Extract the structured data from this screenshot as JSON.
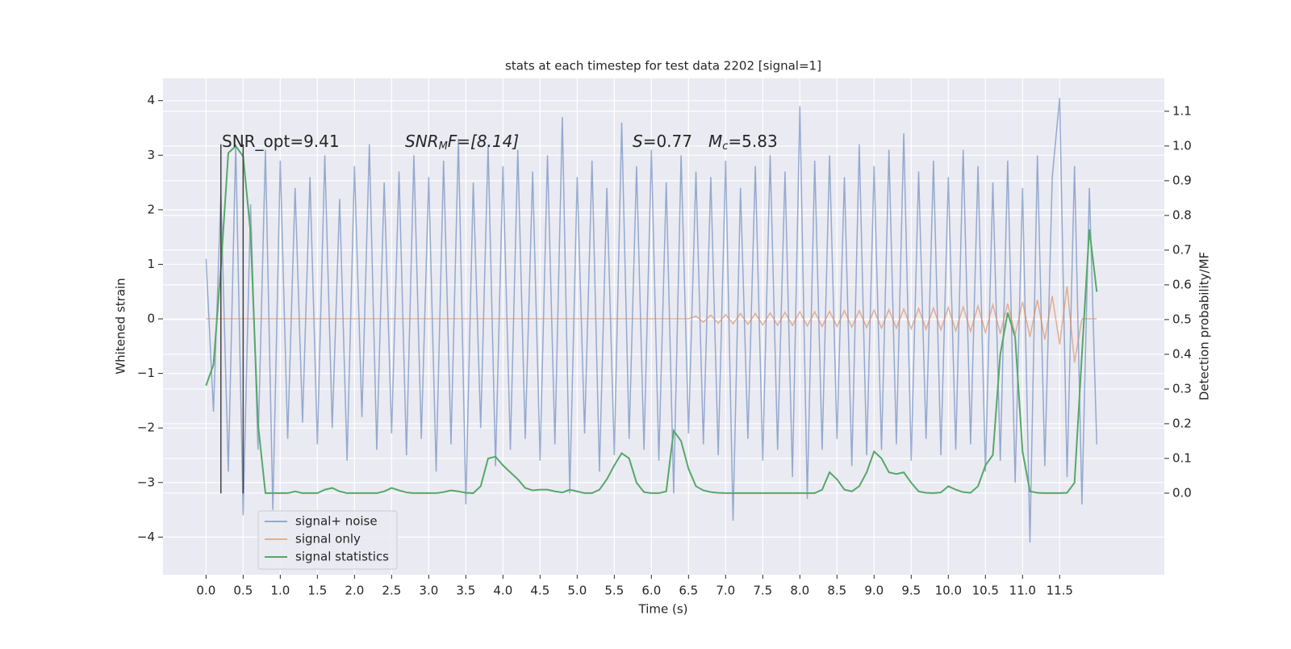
{
  "chart_data": {
    "type": "line",
    "title": "stats at each timestep for test data 2202 [signal=1]",
    "xlabel": "Time (s)",
    "ylabel": "Whitened strain",
    "y2label": "Detection probability/MF",
    "xlim": [
      -0.58,
      12.91
    ],
    "ylim": [
      -4.69,
      4.41
    ],
    "y2lim": [
      -0.235,
      1.195
    ],
    "xticks": [
      {
        "value": 0,
        "label": "0.0"
      },
      0.5,
      {
        "value": 1,
        "label": "1.0"
      },
      1.5,
      {
        "value": 2,
        "label": "2.0"
      },
      2.5,
      {
        "value": 3,
        "label": "3.0"
      },
      3.5,
      {
        "value": 4,
        "label": "4.0"
      },
      4.5,
      {
        "value": 5,
        "label": "5.0"
      },
      5.5,
      {
        "value": 6,
        "label": "6.0"
      },
      6.5,
      {
        "value": 7,
        "label": "7.0"
      },
      7.5,
      {
        "value": 8,
        "label": "8.0"
      },
      8.5,
      {
        "value": 9,
        "label": "9.0"
      },
      9.5,
      {
        "value": 10,
        "label": "10.0"
      },
      10.5,
      {
        "value": 11,
        "label": "11.0"
      },
      11.5
    ],
    "yticks": [
      {
        "value": -4,
        "label": "−4"
      },
      {
        "value": -3,
        "label": "−3"
      },
      {
        "value": -2,
        "label": "−2"
      },
      {
        "value": -1,
        "label": "−1"
      },
      0,
      1,
      2,
      3,
      4
    ],
    "y2ticks": [
      {
        "value": 0,
        "label": "0.0"
      },
      0.1,
      0.2,
      0.3,
      0.4,
      0.5,
      0.6,
      0.7,
      0.8,
      0.9,
      {
        "value": 1,
        "label": "1.0"
      },
      1.1
    ],
    "grid": true,
    "legend": "lower left",
    "x": [
      0,
      0.1,
      0.2,
      0.3,
      0.4,
      0.5,
      0.6,
      0.7,
      0.8,
      0.9,
      1,
      1.1,
      1.2,
      1.3,
      1.4,
      1.5,
      1.6,
      1.7,
      1.8,
      1.9,
      2,
      2.1,
      2.2,
      2.3,
      2.4,
      2.5,
      2.6,
      2.7,
      2.8,
      2.9,
      3,
      3.1,
      3.2,
      3.3,
      3.4,
      3.5,
      3.6,
      3.7,
      3.8,
      3.9,
      4,
      4.1,
      4.2,
      4.3,
      4.4,
      4.5,
      4.6,
      4.7,
      4.8,
      4.9,
      5,
      5.1,
      5.2,
      5.3,
      5.4,
      5.5,
      5.6,
      5.7,
      5.8,
      5.9,
      6,
      6.1,
      6.2,
      6.3,
      6.4,
      6.5,
      6.6,
      6.7,
      6.8,
      6.9,
      7,
      7.1,
      7.2,
      7.3,
      7.4,
      7.5,
      7.6,
      7.7,
      7.8,
      7.9,
      8,
      8.1,
      8.2,
      8.3,
      8.4,
      8.5,
      8.6,
      8.7,
      8.8,
      8.9,
      9,
      9.1,
      9.2,
      9.3,
      9.4,
      9.5,
      9.6,
      9.7,
      9.8,
      9.9,
      10,
      10.1,
      10.2,
      10.3,
      10.4,
      10.5,
      10.6,
      10.7,
      10.8,
      10.9,
      11,
      11.1,
      11.2,
      11.3,
      11.4,
      11.5,
      11.6,
      11.7,
      11.8,
      11.9,
      12
    ],
    "series": [
      {
        "name": "signal+ noise",
        "color": "#4c72b0",
        "values": [
          1.1,
          -1.7,
          2.3,
          -2.8,
          3.2,
          -3.6,
          2.1,
          -2.4,
          3.1,
          -3.5,
          2.9,
          -2.2,
          2.4,
          -1.9,
          2.6,
          -2.3,
          3.0,
          -2.0,
          2.2,
          -2.6,
          2.8,
          -1.8,
          3.2,
          -2.4,
          2.5,
          -2.1,
          2.7,
          -2.5,
          3.0,
          -2.2,
          2.6,
          -2.8,
          2.9,
          -2.3,
          3.3,
          -3.4,
          2.5,
          -2.0,
          3.2,
          -2.7,
          2.8,
          -2.4,
          3.1,
          -2.2,
          2.7,
          -2.6,
          3.0,
          -2.3,
          3.7,
          -3.2,
          2.6,
          -2.1,
          2.9,
          -2.8,
          2.4,
          -2.5,
          3.6,
          -2.2,
          2.8,
          -2.4,
          3.1,
          -2.6,
          2.5,
          -3.2,
          3.0,
          -2.1,
          2.7,
          -2.3,
          2.6,
          -2.5,
          2.9,
          -3.7,
          2.4,
          -2.2,
          2.8,
          -2.6,
          3.0,
          -2.4,
          2.7,
          -2.9,
          3.9,
          -3.3,
          2.9,
          -2.4,
          3.0,
          -2.2,
          2.6,
          -2.7,
          3.2,
          -2.5,
          2.8,
          -2.4,
          3.1,
          -2.3,
          3.4,
          -2.6,
          2.7,
          -2.2,
          2.9,
          -2.5,
          2.6,
          -2.4,
          3.1,
          -2.3,
          2.8,
          -2.8,
          2.5,
          -2.6,
          2.9,
          -3.0,
          2.4,
          -4.1,
          3.0,
          -2.7,
          2.6,
          4.05,
          -2.9,
          2.8,
          -3.4,
          2.4,
          -2.3
        ]
      },
      {
        "name": "signal only",
        "color": "#dd8452",
        "values": [
          0,
          0,
          0,
          0,
          0,
          0,
          0,
          0,
          0,
          0,
          0,
          0,
          0,
          0,
          0,
          0,
          0,
          0,
          0,
          0,
          0,
          0,
          0,
          0,
          0,
          0,
          0,
          0,
          0,
          0,
          0,
          0,
          0,
          0,
          0,
          0,
          0,
          0,
          0,
          0,
          0,
          0,
          0,
          0,
          0,
          0,
          0,
          0,
          0,
          0,
          0,
          0,
          0,
          0,
          0,
          0,
          0,
          0,
          0,
          0,
          0,
          0,
          0,
          0,
          0,
          0,
          0.05,
          -0.06,
          0.07,
          -0.08,
          0.08,
          -0.09,
          0.1,
          -0.1,
          0.1,
          -0.11,
          0.11,
          -0.12,
          0.12,
          -0.12,
          0.13,
          -0.13,
          0.13,
          -0.14,
          0.14,
          -0.14,
          0.15,
          -0.15,
          0.15,
          -0.16,
          0.16,
          -0.17,
          0.17,
          -0.17,
          0.18,
          -0.18,
          0.19,
          -0.19,
          0.2,
          -0.2,
          0.21,
          -0.22,
          0.22,
          -0.23,
          0.24,
          -0.25,
          0.26,
          -0.27,
          0.28,
          -0.29,
          0.31,
          -0.33,
          0.35,
          -0.38,
          0.42,
          -0.47,
          0.6,
          -0.8,
          0,
          0,
          0
        ]
      },
      {
        "name": "signal statistics",
        "color": "#55a868",
        "axis": "y2",
        "values": [
          0.31,
          0.37,
          0.65,
          0.98,
          1.0,
          0.97,
          0.75,
          0.2,
          0,
          0,
          0,
          0,
          0.005,
          0,
          0,
          0,
          0.01,
          0.015,
          0.005,
          0,
          0,
          0,
          0,
          0,
          0.005,
          0.015,
          0.008,
          0.002,
          0,
          0,
          0,
          0,
          0.003,
          0.008,
          0.005,
          0.001,
          0,
          0.02,
          0.1,
          0.105,
          0.08,
          0.06,
          0.04,
          0.015,
          0.008,
          0.01,
          0.01,
          0.005,
          0.002,
          0.01,
          0.005,
          0,
          0,
          0.01,
          0.04,
          0.08,
          0.115,
          0.1,
          0.03,
          0.003,
          0,
          0,
          0.005,
          0.18,
          0.15,
          0.07,
          0.02,
          0.008,
          0.003,
          0.001,
          0,
          0,
          0,
          0,
          0,
          0,
          0,
          0,
          0,
          0,
          0,
          0,
          0,
          0.01,
          0.06,
          0.04,
          0.01,
          0.005,
          0.02,
          0.06,
          0.12,
          0.1,
          0.06,
          0.055,
          0.06,
          0.03,
          0.005,
          0.001,
          0,
          0.002,
          0.02,
          0.01,
          0.003,
          0.001,
          0.02,
          0.08,
          0.11,
          0.4,
          0.52,
          0.45,
          0.12,
          0.005,
          0.001,
          0,
          0,
          0,
          0.001,
          0.03,
          0.4,
          0.76,
          0.58
        ]
      }
    ],
    "vlines": {
      "x": [
        0.2,
        0.5
      ],
      "ymin": -3.2,
      "ymax": 3.2,
      "color": "#444444"
    },
    "annotations": [
      [
        "SNR_opt=9.41"
      ],
      [
        "SNR",
        "M",
        "F=[8.14]"
      ],
      [
        "S",
        "=0.77"
      ],
      [
        "M",
        "c",
        "=5.83"
      ]
    ]
  }
}
